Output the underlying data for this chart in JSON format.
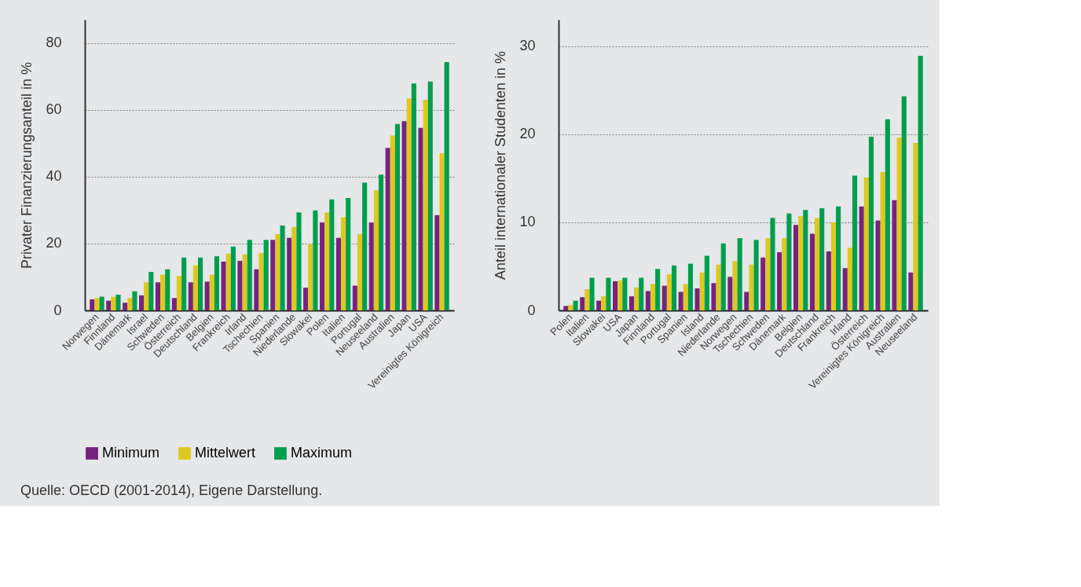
{
  "chart_data": [
    {
      "type": "bar",
      "ylabel": "Privater Finanzierungsanteil in %",
      "categories": [
        "Norwegen",
        "Finnland",
        "Dänemark",
        "Israel",
        "Schweden",
        "Österreich",
        "Deutschland",
        "Belgien",
        "Frankreich",
        "Irland",
        "Tschechien",
        "Spanien",
        "Niederlande",
        "Slowakei",
        "Polen",
        "Italien",
        "Portugal",
        "Neuseeland",
        "Australien",
        "Japan",
        "USA",
        "Vereinigtes Königreich"
      ],
      "series": [
        {
          "name": "Minimum",
          "color": "#76237f",
          "values": [
            3.3,
            2.9,
            2.3,
            4.5,
            8.4,
            3.7,
            8.4,
            8.6,
            14.6,
            14.8,
            12.3,
            21.1,
            21.7,
            6.8,
            26.3,
            21.7,
            7.4,
            26.3,
            48.6,
            56.6,
            54.6,
            28.5
          ]
        },
        {
          "name": "Mittelwert",
          "color": "#dec81f",
          "values": [
            3.7,
            4.1,
            3.7,
            8.4,
            10.7,
            10.3,
            13.5,
            10.7,
            17.0,
            16.8,
            17.2,
            22.8,
            25.0,
            19.9,
            29.3,
            27.9,
            22.8,
            35.9,
            52.3,
            63.4,
            63.0,
            47.0
          ]
        },
        {
          "name": "Maximum",
          "color": "#009e4f",
          "values": [
            4.1,
            4.7,
            5.7,
            11.5,
            12.3,
            15.8,
            15.8,
            16.2,
            19.1,
            21.1,
            21.1,
            25.4,
            29.3,
            29.9,
            33.2,
            33.6,
            38.2,
            40.6,
            55.8,
            67.9,
            68.5,
            74.3
          ]
        }
      ],
      "ylim": [
        0,
        87
      ],
      "yticks": [
        0,
        20,
        40,
        60,
        80
      ],
      "grid": "y",
      "legend": "bottom left",
      "annotations": [
        "Quelle: OECD (2001-2014), Eigene Darstellung."
      ]
    },
    {
      "type": "bar",
      "ylabel": "Anteil internationaler Studenten in %",
      "categories": [
        "Polen",
        "Italien",
        "Slowakei",
        "USA",
        "Japan",
        "Finnland",
        "Portugal",
        "Spanien",
        "Island",
        "Niederlande",
        "Norwegen",
        "Tschechien",
        "Schweden",
        "Dänemark",
        "Belgien",
        "Deutschland",
        "Frankreich",
        "Irland",
        "Österreich",
        "Vereinigtes Königreich",
        "Australien",
        "Neuseeland"
      ],
      "series": [
        {
          "name": "Minimum",
          "color": "#76237f",
          "values": [
            0.5,
            1.5,
            1.1,
            3.3,
            1.6,
            2.2,
            2.8,
            2.1,
            2.5,
            3.1,
            3.8,
            2.1,
            6.0,
            6.6,
            9.7,
            8.7,
            6.7,
            4.8,
            11.8,
            10.2,
            12.5,
            4.3
          ]
        },
        {
          "name": "Mittelwert",
          "color": "#dec81f",
          "values": [
            0.6,
            2.4,
            1.6,
            3.4,
            2.6,
            3.0,
            4.1,
            3.0,
            4.3,
            5.2,
            5.6,
            5.2,
            8.2,
            8.2,
            10.7,
            10.5,
            10.0,
            7.1,
            15.1,
            15.7,
            19.6,
            19.0
          ]
        },
        {
          "name": "Maximum",
          "color": "#009e4f",
          "values": [
            1.1,
            3.7,
            3.7,
            3.7,
            3.7,
            4.7,
            5.1,
            5.3,
            6.2,
            7.6,
            8.2,
            8.0,
            10.5,
            11.0,
            11.4,
            11.6,
            11.8,
            15.3,
            19.7,
            21.7,
            24.3,
            28.9
          ]
        }
      ],
      "ylim": [
        0,
        33
      ],
      "yticks": [
        0,
        10,
        20,
        30
      ],
      "grid": "y"
    }
  ]
}
